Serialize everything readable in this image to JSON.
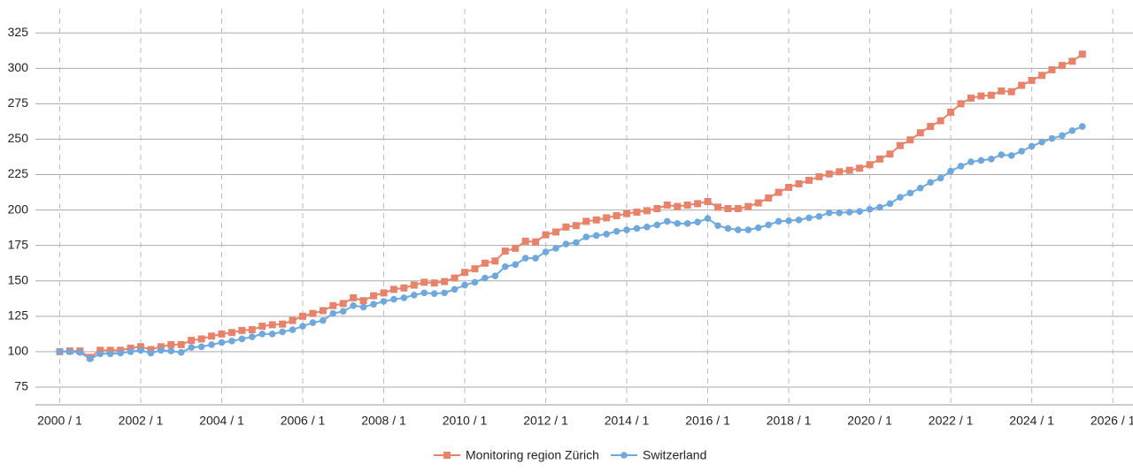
{
  "chart_data": {
    "type": "line",
    "x": [
      2000,
      2000.25,
      2000.5,
      2000.75,
      2001,
      2001.25,
      2001.5,
      2001.75,
      2002,
      2002.25,
      2002.5,
      2002.75,
      2003,
      2003.25,
      2003.5,
      2003.75,
      2004,
      2004.25,
      2004.5,
      2004.75,
      2005,
      2005.25,
      2005.5,
      2005.75,
      2006,
      2006.25,
      2006.5,
      2006.75,
      2007,
      2007.25,
      2007.5,
      2007.75,
      2008,
      2008.25,
      2008.5,
      2008.75,
      2009,
      2009.25,
      2009.5,
      2009.75,
      2010,
      2010.25,
      2010.5,
      2010.75,
      2011,
      2011.25,
      2011.5,
      2011.75,
      2012,
      2012.25,
      2012.5,
      2012.75,
      2013,
      2013.25,
      2013.5,
      2013.75,
      2014,
      2014.25,
      2014.5,
      2014.75,
      2015,
      2015.25,
      2015.5,
      2015.75,
      2016,
      2016.25,
      2016.5,
      2016.75,
      2017,
      2017.25,
      2017.5,
      2017.75,
      2018,
      2018.25,
      2018.5,
      2018.75,
      2019,
      2019.25,
      2019.5,
      2019.75,
      2020,
      2020.25,
      2020.5,
      2020.75,
      2021,
      2021.25,
      2021.5,
      2021.75,
      2022,
      2022.25,
      2022.5,
      2022.75,
      2023,
      2023.25,
      2023.5,
      2023.75,
      2024,
      2024.25,
      2024.5,
      2024.75,
      2025,
      2025.25
    ],
    "series": [
      {
        "name": "Monitoring region Zürich",
        "color": "#e8836b",
        "marker": "square",
        "values": [
          100,
          100.5,
          100.5,
          96,
          101,
          101,
          101,
          102.5,
          103.5,
          101.5,
          103.5,
          105,
          105,
          108,
          109,
          111,
          112.5,
          113.5,
          115,
          115.5,
          118,
          119,
          119.5,
          122,
          125,
          127,
          129,
          132.5,
          134,
          138,
          136,
          139.5,
          141.5,
          144,
          145,
          147,
          149,
          148.5,
          149.5,
          152,
          156,
          158.5,
          162.5,
          164,
          171,
          173,
          178,
          177.5,
          182.5,
          184.5,
          188,
          189,
          192,
          193,
          194.5,
          196,
          197.5,
          198.5,
          199.5,
          201,
          203.5,
          202.5,
          203.5,
          204.5,
          206,
          202,
          201,
          201,
          202.5,
          205,
          208.5,
          212.5,
          216,
          218.5,
          221,
          223.5,
          225.5,
          227,
          228,
          229.5,
          232,
          236,
          239.5,
          245.5,
          249.5,
          254.5,
          259,
          263,
          269,
          275,
          279,
          280.5,
          281,
          284,
          283.5,
          288,
          291.5,
          295,
          299,
          302,
          305,
          310
        ]
      },
      {
        "name": "Switzerland",
        "color": "#6fa8dc",
        "marker": "circle",
        "values": [
          100,
          100,
          99.5,
          95,
          98.5,
          98.5,
          99,
          100,
          101,
          99,
          101,
          100.5,
          99.5,
          103,
          103.5,
          105,
          106.5,
          107.5,
          109,
          110.5,
          112.5,
          112.5,
          114,
          115.5,
          118,
          120.5,
          122,
          127,
          128.5,
          132.5,
          131.5,
          133.5,
          135.5,
          137,
          138,
          140,
          141.5,
          141,
          141.5,
          144,
          147,
          149,
          152,
          153.5,
          160,
          161.5,
          166,
          166,
          170.5,
          173,
          176,
          177,
          181,
          182,
          183,
          185,
          186,
          187,
          188,
          189.5,
          192,
          190.5,
          190.5,
          191.5,
          194,
          189,
          187,
          186,
          186,
          187.5,
          189.5,
          192,
          192.5,
          193,
          194.5,
          195.5,
          198,
          198,
          198.5,
          199,
          200.5,
          202,
          204.5,
          209,
          212,
          215.5,
          219.5,
          222.5,
          227.5,
          231,
          234,
          235,
          236,
          239,
          238.5,
          241.5,
          245,
          248,
          250.5,
          252.5,
          256,
          259
        ]
      }
    ],
    "xlim": [
      1999.4,
      2026.5
    ],
    "xticks": [
      {
        "value": 2000,
        "label": "2000 / 1"
      },
      {
        "value": 2002,
        "label": "2002 / 1"
      },
      {
        "value": 2004,
        "label": "2004 / 1"
      },
      {
        "value": 2006,
        "label": "2006 / 1"
      },
      {
        "value": 2008,
        "label": "2008 / 1"
      },
      {
        "value": 2010,
        "label": "2010 / 1"
      },
      {
        "value": 2012,
        "label": "2012 / 1"
      },
      {
        "value": 2014,
        "label": "2014 / 1"
      },
      {
        "value": 2016,
        "label": "2016 / 1"
      },
      {
        "value": 2018,
        "label": "2018 / 1"
      },
      {
        "value": 2020,
        "label": "2020 / 1"
      },
      {
        "value": 2022,
        "label": "2022 / 1"
      },
      {
        "value": 2024,
        "label": "2024 / 1"
      },
      {
        "value": 2026,
        "label": "2026 / 1"
      }
    ],
    "ylim": [
      62.5,
      342
    ],
    "yticks": [
      75,
      100,
      125,
      150,
      175,
      200,
      225,
      250,
      275,
      300,
      325
    ],
    "grid": true,
    "legend": "bottom"
  }
}
